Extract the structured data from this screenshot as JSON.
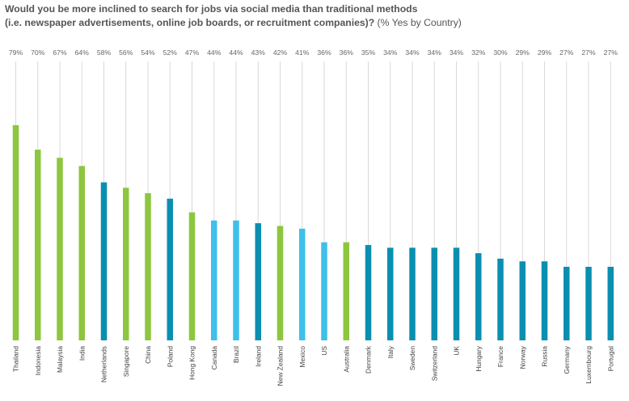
{
  "title": {
    "line1": "Would you be more inclined to search for jobs via social media than traditional methods",
    "line2_bold": "(i.e. newspaper advertisements, online job boards, or recruitment companies)?",
    "line2_normal": " (% Yes by Country)"
  },
  "colors": {
    "green": "#8dc63f",
    "dark_blue": "#0a8fb0",
    "light_blue": "#3ec0ea",
    "gridline": "#d9d9d9"
  },
  "chart_data": {
    "type": "bar",
    "ylim": [
      0,
      100
    ],
    "grid": true,
    "categories": [
      "Thailand",
      "Indonesia",
      "Malaysia",
      "India",
      "Netherlands",
      "Singapore",
      "China",
      "Poland",
      "Hong Kong",
      "Canada",
      "Brazil",
      "Ireland",
      "New Zealand",
      "Mexico",
      "US",
      "Australia",
      "Denmark",
      "Italy",
      "Sweden",
      "Switzerland",
      "UK",
      "Hungary",
      "France",
      "Norway",
      "Russia",
      "Germany",
      "Luxembourg",
      "Portugal"
    ],
    "values": [
      79,
      70,
      67,
      64,
      58,
      56,
      54,
      52,
      47,
      44,
      44,
      43,
      42,
      41,
      36,
      36,
      35,
      34,
      34,
      34,
      34,
      32,
      30,
      29,
      29,
      27,
      27,
      27
    ],
    "labels": [
      "79%",
      "70%",
      "67%",
      "64%",
      "58%",
      "56%",
      "54%",
      "52%",
      "47%",
      "44%",
      "44%",
      "43%",
      "42%",
      "41%",
      "36%",
      "36%",
      "35%",
      "34%",
      "34%",
      "34%",
      "34%",
      "32%",
      "30%",
      "29%",
      "29%",
      "27%",
      "27%",
      "27%"
    ],
    "bar_colors": [
      "green",
      "green",
      "green",
      "green",
      "dark_blue",
      "green",
      "green",
      "dark_blue",
      "green",
      "light_blue",
      "light_blue",
      "dark_blue",
      "green",
      "light_blue",
      "light_blue",
      "green",
      "dark_blue",
      "dark_blue",
      "dark_blue",
      "dark_blue",
      "dark_blue",
      "dark_blue",
      "dark_blue",
      "dark_blue",
      "dark_blue",
      "dark_blue",
      "dark_blue",
      "dark_blue"
    ]
  }
}
